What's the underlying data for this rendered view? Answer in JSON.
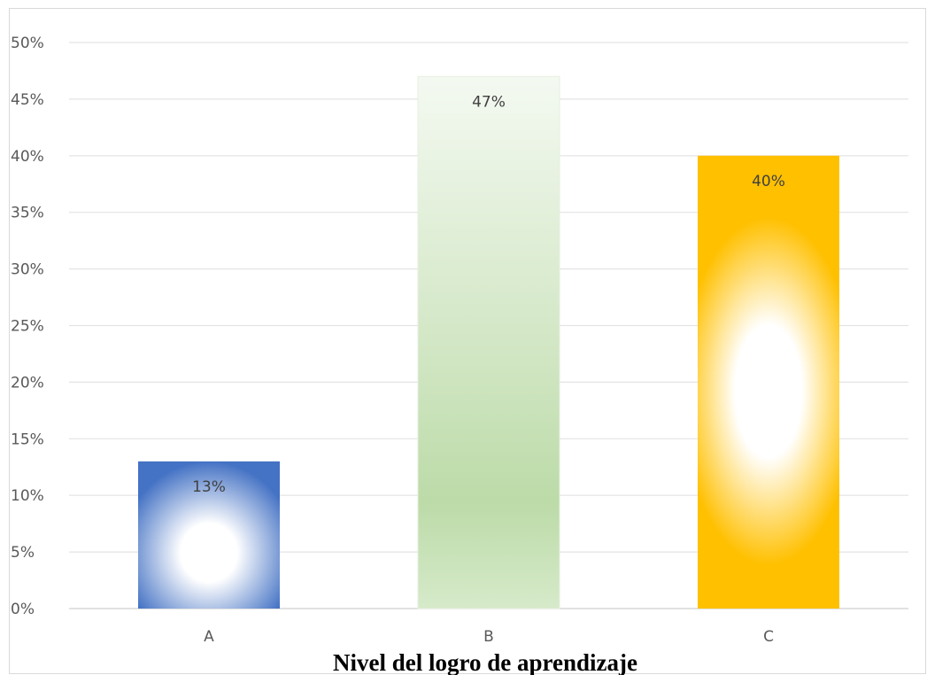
{
  "chart_data": {
    "type": "bar",
    "categories": [
      "A",
      "B",
      "C"
    ],
    "values": [
      13,
      47,
      40
    ],
    "data_labels": [
      "13%",
      "47%",
      "40%"
    ],
    "title": "",
    "xlabel": "Nivel del logro de aprendizaje",
    "ylabel": "",
    "ylim": [
      0,
      50
    ],
    "y_ticks": [
      0,
      5,
      10,
      15,
      20,
      25,
      30,
      35,
      40,
      45,
      50
    ],
    "y_tick_labels": [
      "0%",
      "5%",
      "10%",
      "15%",
      "20%",
      "25%",
      "30%",
      "35%",
      "40%",
      "45%",
      "50%"
    ],
    "grid": true,
    "legend": "none",
    "colors": {
      "A": "#4472c4",
      "B": "#a9d18e",
      "C": "#ffc000"
    }
  }
}
